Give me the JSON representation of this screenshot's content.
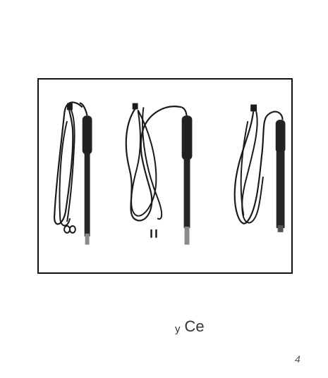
{
  "caption": {
    "prefix": "y",
    "text": "Ce"
  },
  "page_mark": "4",
  "colors": {
    "frame_border": "#111111",
    "cable": "#1a1a1a",
    "probe_body": "#222222",
    "probe_tip": "#8a8a8a"
  },
  "icons": {
    "probe": "electrode-probe-with-cable"
  }
}
